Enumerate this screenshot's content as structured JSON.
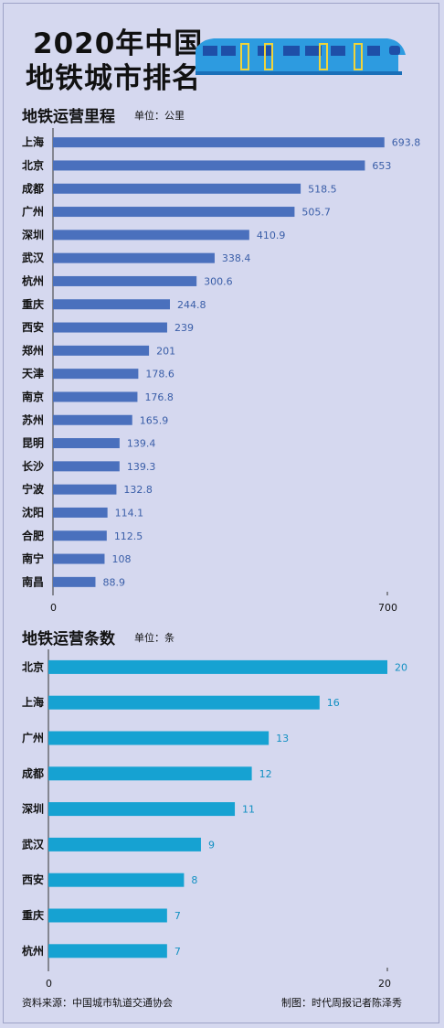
{
  "header": {
    "title_line1": "2020年中国",
    "title_line2": "地铁城市排名",
    "illustration": "train-icon"
  },
  "chart_data": [
    {
      "type": "bar",
      "orientation": "horizontal",
      "title": "地铁运营里程",
      "unit_label": "单位：公里",
      "categories": [
        "上海",
        "北京",
        "成都",
        "广州",
        "深圳",
        "武汉",
        "杭州",
        "重庆",
        "西安",
        "郑州",
        "天津",
        "南京",
        "苏州",
        "昆明",
        "长沙",
        "宁波",
        "沈阳",
        "合肥",
        "南宁",
        "南昌"
      ],
      "values": [
        693.8,
        653,
        518.5,
        505.7,
        410.9,
        338.4,
        300.6,
        244.8,
        239,
        201,
        178.6,
        176.8,
        165.9,
        139.4,
        139.3,
        132.8,
        114.1,
        112.5,
        108,
        88.9
      ],
      "value_labels": [
        "693.8",
        "653",
        "518.5",
        "505.7",
        "410.9",
        "338.4",
        "300.6",
        "244.8",
        "239",
        "201",
        "178.6",
        "176.8",
        "165.9",
        "139.4",
        "139.3",
        "132.8",
        "114.1",
        "112.5",
        "108",
        "88.9"
      ],
      "xlim": [
        0,
        700
      ],
      "ticks": [
        "0",
        "700"
      ],
      "bar_color": "#4a70bd",
      "label_color": "#3a5ea8"
    },
    {
      "type": "bar",
      "orientation": "horizontal",
      "title": "地铁运营条数",
      "unit_label": "单位：条",
      "categories": [
        "北京",
        "上海",
        "广州",
        "成都",
        "深圳",
        "武汉",
        "西安",
        "重庆",
        "杭州"
      ],
      "values": [
        20,
        16,
        13,
        12,
        11,
        9,
        8,
        7,
        7
      ],
      "value_labels": [
        "20",
        "16",
        "13",
        "12",
        "11",
        "9",
        "8",
        "7",
        "7"
      ],
      "xlim": [
        0,
        20
      ],
      "ticks": [
        "0",
        "20"
      ],
      "bar_color": "#16a2d2",
      "label_color": "#1290c2"
    }
  ],
  "footer": {
    "source": "资料来源：中国城市轨道交通协会",
    "credit": "制图：时代周报记者陈泽秀"
  },
  "colors": {
    "background": "#d5d8ef",
    "train_body": "#2d9be0",
    "train_window": "#1e4fa8",
    "train_door": "#f0d43a"
  }
}
